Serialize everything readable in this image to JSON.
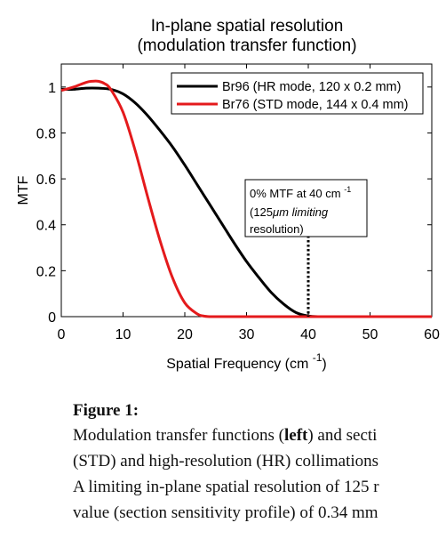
{
  "chart_data": {
    "type": "line",
    "title": [
      "In-plane spatial resolution",
      "(modulation transfer function)"
    ],
    "xlabel": "Spatial Frequency (cm",
    "xlabel_exp": "-1",
    "xlabel_close": ")",
    "ylabel": "MTF",
    "xlim": [
      0,
      60
    ],
    "ylim": [
      0,
      1.1
    ],
    "xticks": [
      0,
      10,
      20,
      30,
      40,
      50,
      60
    ],
    "yticks": [
      0,
      0.2,
      0.4,
      0.6,
      0.8,
      1
    ],
    "ytick_labels": [
      "0",
      "0.2",
      "0.4",
      "0.6",
      "0.8",
      "1"
    ],
    "grid": false,
    "legend": "top-right",
    "series": [
      {
        "name": "Br96 (HR mode, 120 x 0.2 mm)",
        "color": "#000000",
        "x": [
          0,
          2,
          4,
          6,
          8,
          10,
          12,
          14,
          16,
          18,
          20,
          22,
          24,
          26,
          28,
          30,
          32,
          34,
          36,
          38,
          40,
          42,
          44,
          46,
          48,
          50,
          52,
          54,
          56,
          58,
          60
        ],
        "y": [
          0.99,
          0.99,
          0.995,
          0.995,
          0.99,
          0.97,
          0.93,
          0.875,
          0.81,
          0.74,
          0.66,
          0.575,
          0.49,
          0.405,
          0.32,
          0.24,
          0.17,
          0.105,
          0.055,
          0.018,
          0.003,
          0,
          0,
          0,
          0,
          0,
          0,
          0,
          0,
          0,
          0
        ]
      },
      {
        "name": "Br76 (STD mode, 144 x 0.4 mm)",
        "color": "#e41a1c",
        "x": [
          0,
          2,
          4,
          5,
          6,
          7,
          8,
          10,
          12,
          14,
          16,
          18,
          20,
          22,
          23,
          24,
          25,
          30,
          40,
          50,
          60
        ],
        "y": [
          0.985,
          1.0,
          1.02,
          1.025,
          1.025,
          1.015,
          0.99,
          0.89,
          0.72,
          0.52,
          0.33,
          0.17,
          0.06,
          0.012,
          0.003,
          0,
          0,
          0,
          0,
          0,
          0
        ]
      }
    ],
    "annotation": {
      "x": 40,
      "y": 0.0,
      "lines": [
        "0% MTF at 40 cm",
        "(125",
        "resolution)"
      ],
      "line1_exp": "-1",
      "line2_mu": "μm limiting"
    }
  },
  "caption": {
    "heading": "Figure 1:",
    "lines": [
      [
        "Modulation transfer functions (",
        "left",
        ") and secti"
      ],
      [
        "(STD) and high-resolution (HR) collimations"
      ],
      [
        "A limiting in-plane spatial resolution of 125 r"
      ],
      [
        "value (section sensitivity profile) of 0.34 mm"
      ]
    ]
  }
}
